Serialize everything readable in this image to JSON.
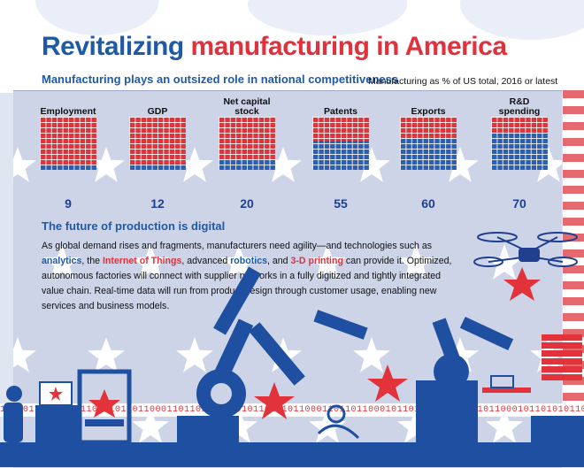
{
  "header": {
    "title_part1": "Revitalizing",
    "title_part2": "manufacturing in America",
    "subtitle": "Manufacturing plays an outsized role in national competitiveness",
    "note": "Manufacturing as % of US total, 2016 or latest"
  },
  "chart_data": {
    "type": "bar",
    "categories": [
      "Employment",
      "GDP",
      "Net capital stock",
      "Patents",
      "Exports",
      "R&D spending"
    ],
    "values": [
      9,
      12,
      20,
      55,
      60,
      70
    ],
    "unit": "%",
    "ylim": [
      0,
      100
    ],
    "colors": {
      "manufacturing": "#2a5fb2",
      "other": "#e2323a"
    }
  },
  "labels": {
    "m0": "Employment",
    "m1": "GDP",
    "m2_line1": "Net capital",
    "m2_line2": "stock",
    "m3": "Patents",
    "m4": "Exports",
    "m5_line1": "R&D",
    "m5_line2": "spending",
    "v0": "9",
    "v1": "12",
    "v2": "20",
    "v3": "55",
    "v4": "60",
    "v5": "70"
  },
  "section": {
    "heading": "The future of production is digital",
    "p1": "As global demand rises and fragments, manufacturers need agility—and technologies such as",
    "kw1": "analytics",
    "p2": ", the",
    "kw2": "Internet of Things",
    "p3": ", advanced",
    "kw3": "robotics",
    "p4": ", and",
    "kw4": "3-D printing",
    "p5": "can provide it. Optimized, autonomous factories will connect with supplier networks in a fully digitized and tightly integrated value chain. Real-time data will run from product design through customer usage, enabling new services and business models."
  },
  "binary_strip": "1101011001011011000101101100011011010110001011010101100011011011000101101100011011010110001011010101100011011011000101101100011011010110001011010101100011011011000101101100011011010110"
}
